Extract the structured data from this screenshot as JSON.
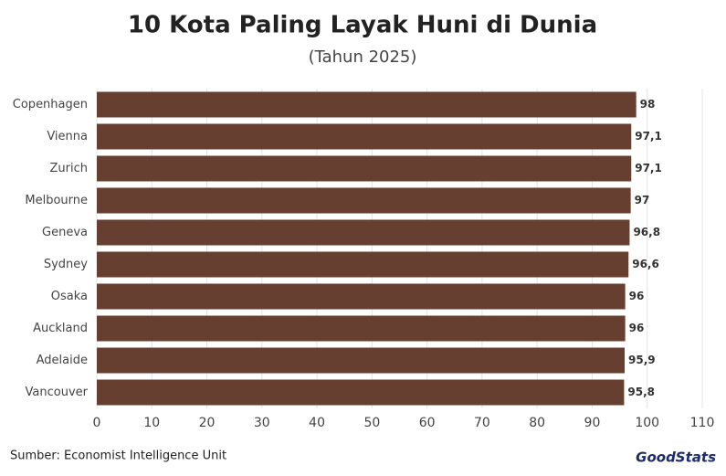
{
  "chart_data": {
    "type": "hbar",
    "title": "10 Kota Paling Layak Huni di Dunia",
    "subtitle": "(Tahun 2025)",
    "categories": [
      "Copenhagen",
      "Vienna",
      "Zurich",
      "Melbourne",
      "Geneva",
      "Sydney",
      "Osaka",
      "Auckland",
      "Adelaide",
      "Vancouver"
    ],
    "values": [
      98,
      97.1,
      97.1,
      97,
      96.8,
      96.6,
      96,
      96,
      95.9,
      95.8
    ],
    "value_labels": [
      "98",
      "97,1",
      "97,1",
      "97",
      "96,8",
      "96,6",
      "96",
      "96",
      "95,9",
      "95,8"
    ],
    "color": "#673f31",
    "xlim": [
      0,
      110
    ],
    "xticks": [
      0,
      10,
      20,
      30,
      40,
      50,
      60,
      70,
      80,
      90,
      100,
      110
    ],
    "grid": true,
    "source": "Sumber: Economist Intelligence Unit",
    "logo": "GoodStats"
  }
}
